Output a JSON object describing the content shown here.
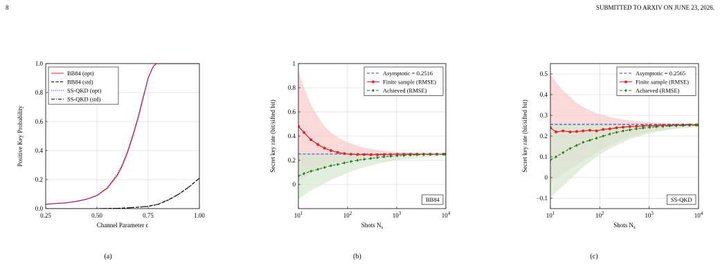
{
  "page": {
    "number": "8",
    "header": "SUBMITTED TO ARXIV ON JUNE 23, 2026."
  },
  "colors": {
    "red": "#e8202a",
    "black": "#000000",
    "blue": "#1f3fd6",
    "green": "#1e7a1e",
    "red_band": "#f7c9c9",
    "green_band": "#d6e8d0"
  },
  "chart_data": [
    {
      "id": "a",
      "type": "line",
      "caption": "(a)",
      "xlabel": "Channel Parameter ϵ",
      "ylabel": "Positive Key Probability",
      "xlim": [
        0.25,
        1.0
      ],
      "ylim": [
        0,
        1.0
      ],
      "xticks": [
        0.25,
        0.5,
        0.75,
        1.0
      ],
      "xticklabels": [
        "0.25",
        "0.50",
        "0.75",
        "1.00"
      ],
      "yticks": [
        0,
        0.2,
        0.4,
        0.6,
        0.8,
        1.0
      ],
      "yticklabels": [
        "0.0",
        "0.2",
        "0.4",
        "0.6",
        "0.8",
        "1.0"
      ],
      "grid": true,
      "legend_position": "top-left",
      "series": [
        {
          "name": "BB84 (opt)",
          "color": "#e8202a",
          "style": "solid",
          "x": [
            0.25,
            0.3,
            0.35,
            0.4,
            0.45,
            0.5,
            0.55,
            0.6,
            0.625,
            0.65,
            0.675,
            0.7,
            0.725,
            0.75,
            0.775,
            0.79,
            0.8,
            0.85,
            0.9,
            0.95,
            1.0
          ],
          "y": [
            0.03,
            0.035,
            0.04,
            0.05,
            0.065,
            0.09,
            0.14,
            0.23,
            0.3,
            0.39,
            0.5,
            0.62,
            0.76,
            0.9,
            0.98,
            1.0,
            1.0,
            1.0,
            1.0,
            1.0,
            1.0
          ]
        },
        {
          "name": "BB84 (std)",
          "color": "#000000",
          "style": "dashed",
          "x": [
            0.25,
            0.3,
            0.4,
            0.5,
            0.6,
            0.65,
            0.7,
            0.75,
            0.8,
            0.85,
            0.9,
            0.95,
            1.0
          ],
          "y": [
            0,
            0,
            0,
            0,
            0.002,
            0.005,
            0.01,
            0.015,
            0.03,
            0.06,
            0.1,
            0.15,
            0.21
          ]
        },
        {
          "name": "SS-QKD (opt)",
          "color": "#1f3fd6",
          "style": "dotted",
          "x": [
            0.25,
            0.3,
            0.35,
            0.4,
            0.45,
            0.5,
            0.55,
            0.6,
            0.625,
            0.65,
            0.675,
            0.7,
            0.725,
            0.75,
            0.775,
            0.79,
            0.8,
            0.85,
            0.9,
            0.95,
            1.0
          ],
          "y": [
            0.03,
            0.035,
            0.04,
            0.05,
            0.066,
            0.092,
            0.145,
            0.24,
            0.31,
            0.4,
            0.51,
            0.63,
            0.77,
            0.9,
            0.98,
            1.0,
            1.0,
            1.0,
            1.0,
            1.0,
            1.0
          ]
        },
        {
          "name": "SS-QKD (std)",
          "color": "#000000",
          "style": "dashdot",
          "x": [
            0.25,
            0.3,
            0.4,
            0.5,
            0.6,
            0.65,
            0.7,
            0.75,
            0.8,
            0.85,
            0.9,
            0.95,
            1.0
          ],
          "y": [
            0,
            0,
            0,
            0,
            0.002,
            0.005,
            0.01,
            0.016,
            0.031,
            0.062,
            0.1,
            0.15,
            0.21
          ]
        }
      ]
    },
    {
      "id": "b",
      "type": "line",
      "caption": "(b)",
      "xlabel": "Shots N_s",
      "ylabel": "Secret key rate (bit/sifted bit)",
      "xscale": "log",
      "xlim": [
        10,
        10000
      ],
      "ylim": [
        -0.2,
        1.0
      ],
      "xticks": [
        10,
        100,
        1000,
        10000
      ],
      "xticklabels": [
        "10^1",
        "10^2",
        "10^3",
        "10^4"
      ],
      "yticks": [
        0,
        0.2,
        0.4,
        0.6,
        0.8,
        1.0
      ],
      "yticklabels": [
        "0",
        "0.2",
        "0.4",
        "0.6",
        "0.8",
        "1"
      ],
      "grid": true,
      "legend_position": "top-right",
      "tag": "BB84",
      "series": [
        {
          "name": "Asymptotic = 0.2516",
          "color": "#1f3fd6",
          "style": "dashed",
          "x": [
            10,
            10000
          ],
          "y": [
            0.2516,
            0.2516
          ]
        },
        {
          "name": "Finite sample (RMSE)",
          "color": "#e8202a",
          "style": "solid",
          "marker": "circle",
          "x": [
            10,
            13,
            18,
            25,
            34,
            46,
            63,
            86,
            117,
            160,
            218,
            297,
            405,
            552,
            752,
            1025,
            1397,
            1904,
            2595,
            3537,
            4820,
            6570,
            8955,
            10000
          ],
          "y": [
            0.48,
            0.43,
            0.37,
            0.33,
            0.3,
            0.28,
            0.265,
            0.255,
            0.25,
            0.248,
            0.247,
            0.246,
            0.246,
            0.247,
            0.248,
            0.249,
            0.25,
            0.25,
            0.251,
            0.251,
            0.251,
            0.251,
            0.251,
            0.251
          ],
          "band_lower": [
            0.03,
            0.06,
            0.09,
            0.12,
            0.14,
            0.16,
            0.175,
            0.188,
            0.198,
            0.207,
            0.214,
            0.22,
            0.225,
            0.23,
            0.234,
            0.237,
            0.24,
            0.242,
            0.244,
            0.246,
            0.247,
            0.248,
            0.249,
            0.249
          ],
          "band_upper": [
            0.94,
            0.8,
            0.66,
            0.56,
            0.48,
            0.43,
            0.39,
            0.36,
            0.34,
            0.32,
            0.305,
            0.295,
            0.285,
            0.278,
            0.272,
            0.268,
            0.265,
            0.262,
            0.26,
            0.258,
            0.256,
            0.255,
            0.254,
            0.254
          ]
        },
        {
          "name": "Achieved (RMSE)",
          "color": "#1e7a1e",
          "style": "dashed",
          "marker": "diamond",
          "x": [
            10,
            13,
            18,
            25,
            34,
            46,
            63,
            86,
            117,
            160,
            218,
            297,
            405,
            552,
            752,
            1025,
            1397,
            1904,
            2595,
            3537,
            4820,
            6570,
            8955,
            10000
          ],
          "y": [
            0.07,
            0.09,
            0.11,
            0.125,
            0.14,
            0.155,
            0.165,
            0.178,
            0.19,
            0.2,
            0.208,
            0.215,
            0.222,
            0.228,
            0.233,
            0.237,
            0.24,
            0.243,
            0.245,
            0.247,
            0.248,
            0.249,
            0.25,
            0.25
          ],
          "band_lower": [
            -0.12,
            -0.09,
            -0.05,
            -0.02,
            0.01,
            0.04,
            0.06,
            0.085,
            0.105,
            0.125,
            0.14,
            0.155,
            0.17,
            0.182,
            0.192,
            0.2,
            0.207,
            0.213,
            0.218,
            0.223,
            0.227,
            0.231,
            0.234,
            0.236
          ],
          "band_upper": [
            0.26,
            0.26,
            0.26,
            0.26,
            0.26,
            0.26,
            0.258,
            0.258,
            0.258,
            0.257,
            0.257,
            0.257,
            0.257,
            0.256,
            0.256,
            0.256,
            0.256,
            0.255,
            0.255,
            0.255,
            0.255,
            0.254,
            0.254,
            0.254
          ]
        }
      ]
    },
    {
      "id": "c",
      "type": "line",
      "caption": "(c)",
      "xlabel": "Shots N_s",
      "ylabel": "Secret key rate (bit/sifted bit)",
      "xscale": "log",
      "xlim": [
        10,
        10000
      ],
      "ylim": [
        -0.15,
        0.55
      ],
      "xticks": [
        10,
        100,
        1000,
        10000
      ],
      "xticklabels": [
        "10^1",
        "10^2",
        "10^3",
        "10^4"
      ],
      "yticks": [
        -0.1,
        0,
        0.1,
        0.2,
        0.3,
        0.4,
        0.5
      ],
      "yticklabels": [
        "−0.1",
        "0",
        "0.1",
        "0.2",
        "0.3",
        "0.4",
        "0.5"
      ],
      "grid": true,
      "legend_position": "top-right",
      "tag": "SS-QKD",
      "series": [
        {
          "name": "Asymptotic = 0.2565",
          "color": "#1f3fd6",
          "style": "dashed",
          "x": [
            10,
            10000
          ],
          "y": [
            0.2565,
            0.2565
          ]
        },
        {
          "name": "Finite sample (RMSE)",
          "color": "#e8202a",
          "style": "solid",
          "marker": "circle",
          "x": [
            10,
            13,
            18,
            25,
            34,
            46,
            63,
            86,
            117,
            160,
            218,
            297,
            405,
            552,
            752,
            1025,
            1397,
            1904,
            2595,
            3537,
            4820,
            6570,
            8955,
            10000
          ],
          "y": [
            0.24,
            0.22,
            0.225,
            0.22,
            0.222,
            0.225,
            0.228,
            0.225,
            0.232,
            0.235,
            0.24,
            0.243,
            0.246,
            0.247,
            0.249,
            0.25,
            0.251,
            0.252,
            0.253,
            0.253,
            0.254,
            0.254,
            0.254,
            0.254
          ],
          "band_lower": [
            -0.02,
            0.0,
            0.02,
            0.04,
            0.06,
            0.08,
            0.1,
            0.12,
            0.14,
            0.155,
            0.17,
            0.185,
            0.195,
            0.205,
            0.213,
            0.22,
            0.226,
            0.231,
            0.235,
            0.238,
            0.241,
            0.243,
            0.245,
            0.246
          ],
          "band_upper": [
            0.5,
            0.46,
            0.42,
            0.39,
            0.36,
            0.34,
            0.325,
            0.31,
            0.3,
            0.292,
            0.286,
            0.28,
            0.276,
            0.272,
            0.269,
            0.266,
            0.264,
            0.262,
            0.261,
            0.26,
            0.259,
            0.258,
            0.258,
            0.258
          ]
        },
        {
          "name": "Achieved (RMSE)",
          "color": "#1e7a1e",
          "style": "dashed",
          "marker": "diamond",
          "x": [
            10,
            13,
            18,
            25,
            34,
            46,
            63,
            86,
            117,
            160,
            218,
            297,
            405,
            552,
            752,
            1025,
            1397,
            1904,
            2595,
            3537,
            4820,
            6570,
            8955,
            10000
          ],
          "y": [
            0.085,
            0.1,
            0.12,
            0.14,
            0.155,
            0.17,
            0.18,
            0.19,
            0.2,
            0.21,
            0.218,
            0.225,
            0.23,
            0.235,
            0.239,
            0.242,
            0.245,
            0.247,
            0.249,
            0.25,
            0.251,
            0.252,
            0.253,
            0.253
          ],
          "band_lower": [
            -0.1,
            -0.07,
            -0.04,
            -0.01,
            0.02,
            0.05,
            0.075,
            0.1,
            0.12,
            0.14,
            0.155,
            0.17,
            0.185,
            0.195,
            0.205,
            0.213,
            0.22,
            0.226,
            0.231,
            0.235,
            0.238,
            0.241,
            0.243,
            0.245
          ],
          "band_upper": [
            0.26,
            0.26,
            0.26,
            0.26,
            0.26,
            0.26,
            0.26,
            0.26,
            0.26,
            0.26,
            0.26,
            0.26,
            0.259,
            0.259,
            0.259,
            0.258,
            0.258,
            0.258,
            0.258,
            0.257,
            0.257,
            0.257,
            0.257,
            0.257
          ]
        }
      ]
    }
  ]
}
